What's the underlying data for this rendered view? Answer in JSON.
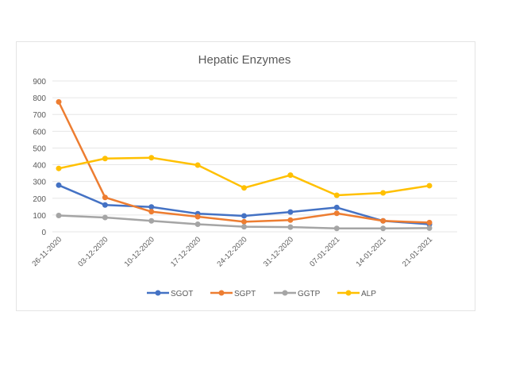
{
  "chart_data": {
    "type": "line",
    "title": "Hepatic Enzymes",
    "xlabel": "",
    "ylabel": "",
    "ylim": [
      0,
      900
    ],
    "yticks": [
      0,
      100,
      200,
      300,
      400,
      500,
      600,
      700,
      800,
      900
    ],
    "grid": true,
    "legend": "bottom",
    "categories": [
      "26-11-2020",
      "03-12-2020",
      "10-12-2020",
      "17-12-2020",
      "24-12-2020",
      "31-12-2020",
      "07-01-2021",
      "14-01-2021",
      "21-01-2021"
    ],
    "series": [
      {
        "name": "SGOT",
        "color": "#4472c4",
        "values": [
          278,
          160,
          148,
          108,
          95,
          118,
          145,
          65,
          45
        ]
      },
      {
        "name": "SGPT",
        "color": "#ed7d31",
        "values": [
          775,
          205,
          120,
          90,
          60,
          70,
          110,
          65,
          55
        ]
      },
      {
        "name": "GGTP",
        "color": "#a5a5a5",
        "values": [
          97,
          85,
          65,
          45,
          30,
          28,
          20,
          20,
          22
        ]
      },
      {
        "name": "ALP",
        "color": "#ffc000",
        "values": [
          378,
          437,
          442,
          398,
          262,
          338,
          218,
          232,
          275
        ]
      }
    ]
  }
}
